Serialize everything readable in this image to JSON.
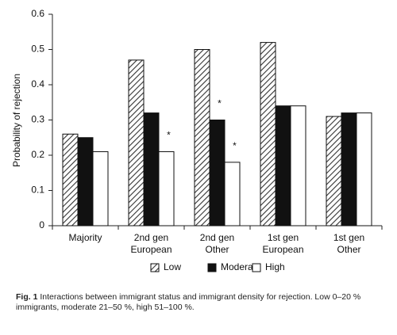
{
  "chart_data": {
    "type": "bar",
    "y_label": "Probability of rejection",
    "categories": [
      [
        "Majority"
      ],
      [
        "2nd gen",
        "European"
      ],
      [
        "2nd gen",
        "Other"
      ],
      [
        "1st  gen",
        "European"
      ],
      [
        "1st gen",
        "Other"
      ]
    ],
    "series": [
      {
        "name": "Low",
        "color": "#333333",
        "hatch": true,
        "values": [
          0.26,
          0.47,
          0.5,
          0.52,
          0.31
        ],
        "annotations": [
          null,
          null,
          null,
          null,
          null
        ]
      },
      {
        "name": "Moderate",
        "color": "#111111",
        "hatch": false,
        "values": [
          0.25,
          0.32,
          0.3,
          0.34,
          0.32
        ],
        "annotations": [
          null,
          null,
          "*",
          null,
          null
        ]
      },
      {
        "name": "High",
        "color": "#ffffff",
        "hatch": false,
        "values": [
          0.21,
          0.21,
          0.18,
          0.34,
          0.32
        ],
        "annotations": [
          null,
          "*",
          "*",
          null,
          null
        ]
      }
    ],
    "ylim": [
      0,
      0.6
    ],
    "yticks": [
      0,
      0.1,
      0.2,
      0.3,
      0.4,
      0.5,
      0.6
    ],
    "grid": false,
    "legend": "bottom",
    "caption": {
      "label": "Fig. 1",
      "text": "Interactions between immigrant status and immigrant density for rejection. Low 0–20 % immigrants, moderate 21–50 %, high 51–100 %."
    }
  }
}
